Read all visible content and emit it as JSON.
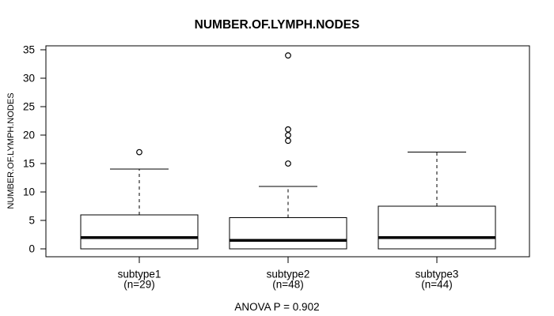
{
  "title": "NUMBER.OF.LYMPH.NODES",
  "chart_data": {
    "type": "boxplot",
    "title": "NUMBER.OF.LYMPH.NODES",
    "ylabel": "NUMBER.OF.LYMPH.NODES",
    "xlabel": "",
    "annotation": "ANOVA P = 0.902",
    "ylim": [
      0,
      35
    ],
    "yticks": [
      0,
      5,
      10,
      15,
      20,
      25,
      30,
      35
    ],
    "grid": false,
    "legend": "none",
    "groups": [
      {
        "label": "subtype1",
        "sublabel": "(n=29)",
        "whisker_low": 0,
        "q1": 0,
        "median": 2,
        "q3": 6,
        "whisker_high": 14,
        "outliers": [
          17
        ]
      },
      {
        "label": "subtype2",
        "sublabel": "(n=48)",
        "whisker_low": 0,
        "q1": 0,
        "median": 1.5,
        "q3": 5.5,
        "whisker_high": 11,
        "outliers": [
          15,
          19,
          20,
          21,
          34
        ]
      },
      {
        "label": "subtype3",
        "sublabel": "(n=44)",
        "whisker_low": 0,
        "q1": 0,
        "median": 2,
        "q3": 7.5,
        "whisker_high": 17,
        "outliers": []
      }
    ],
    "colors": {
      "line": "#000000",
      "box_fill": "#ffffff",
      "background": "#ffffff"
    }
  }
}
